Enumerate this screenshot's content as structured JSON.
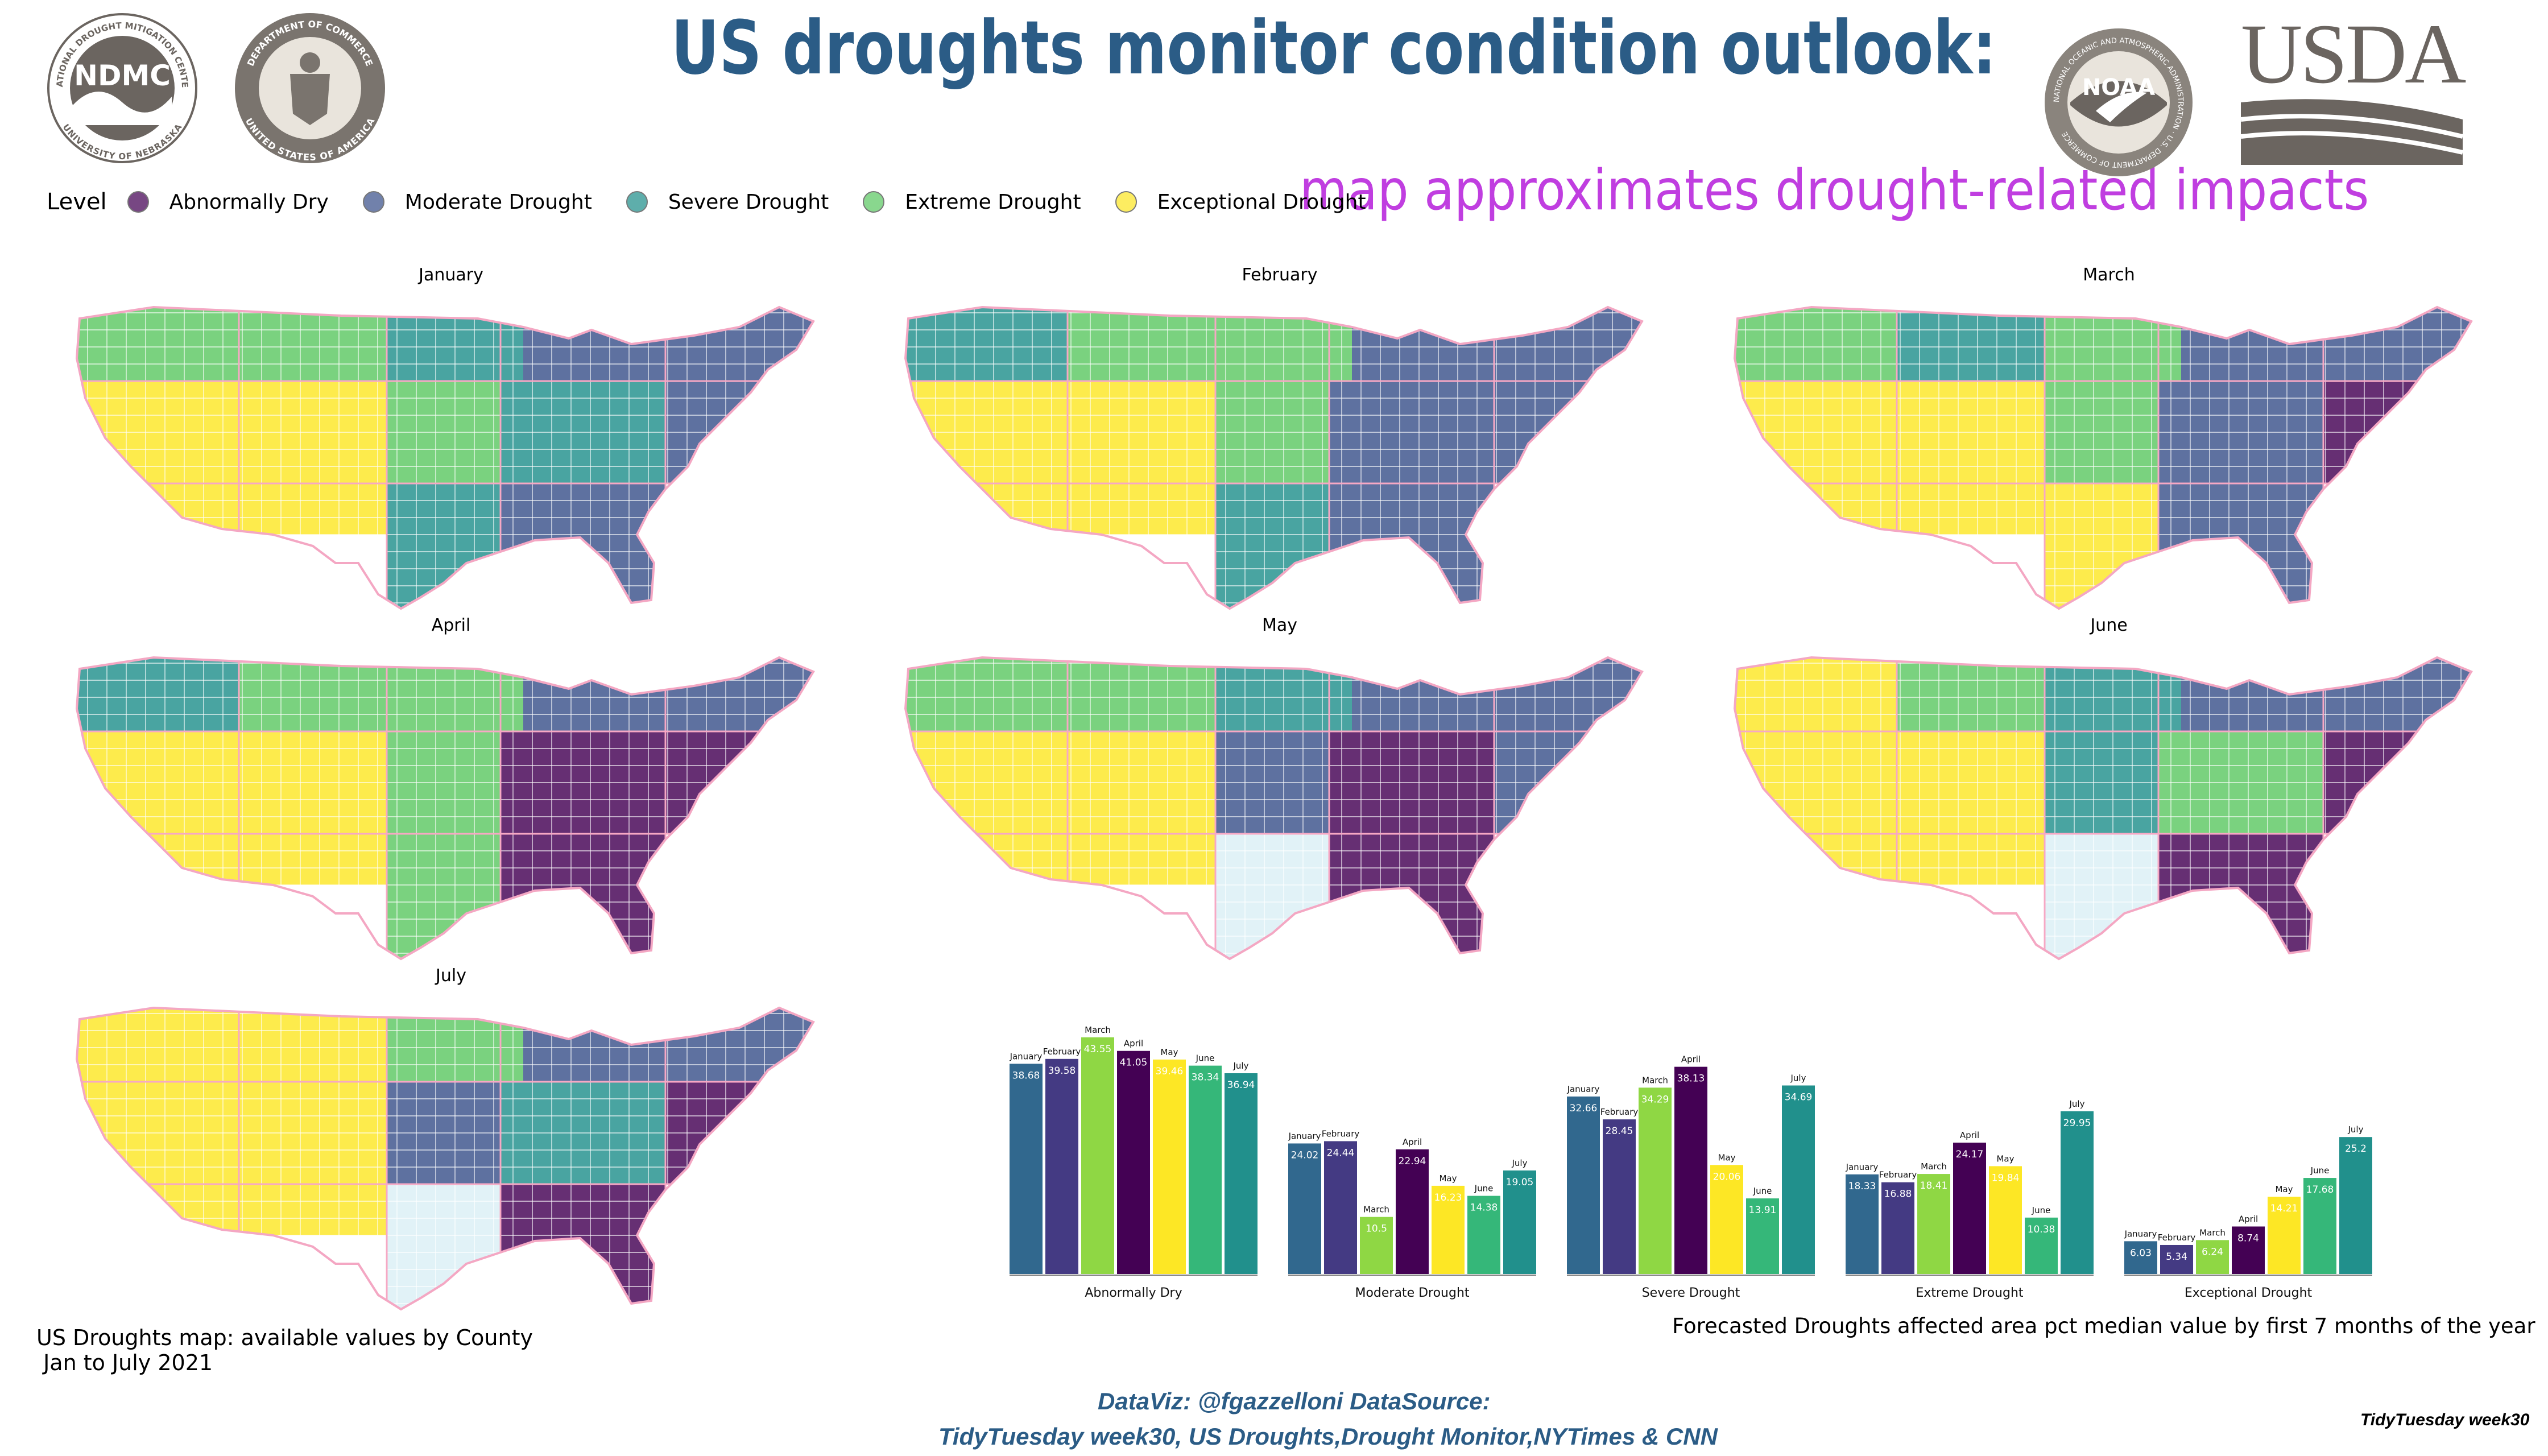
{
  "header": {
    "title": "US droughts monitor condition outlook:",
    "subtitle": "map approximates drought-related impacts"
  },
  "logos": {
    "ndmc": "NDMC",
    "ndmc_ring_top": "NATIONAL DROUGHT MITIGATION CENTER",
    "ndmc_ring_bottom": "UNIVERSITY OF NEBRASKA",
    "commerce_ring_top": "DEPARTMENT OF COMMERCE",
    "commerce_ring_bottom": "UNITED STATES OF AMERICA",
    "noaa": "NOAA",
    "noaa_ring": "NATIONAL OCEANIC AND ATMOSPHERIC ADMINISTRATION · U.S. DEPARTMENT OF COMMERCE",
    "usda": "USDA"
  },
  "legend": {
    "title": "Level",
    "items": [
      {
        "label": "Abnormally Dry",
        "color": "#440154"
      },
      {
        "label": "Moderate Drought",
        "color": "#3b528b"
      },
      {
        "label": "Severe Drought",
        "color": "#21908c"
      },
      {
        "label": "Extreme Drought",
        "color": "#5dc863"
      },
      {
        "label": "Exceptional Drought",
        "color": "#fde725"
      }
    ]
  },
  "maps": {
    "months": [
      "January",
      "February",
      "March",
      "April",
      "May",
      "June",
      "July"
    ],
    "caption": "US Droughts map: available values by County\n Jan to July 2021"
  },
  "chart_data": {
    "type": "bar",
    "title": "Forecasted Droughts affected area pct median value by first 7 months of the year",
    "categories": [
      "Abnormally Dry",
      "Moderate Drought",
      "Severe Drought",
      "Extreme Drought",
      "Exceptional Drought"
    ],
    "series_order": [
      "January",
      "February",
      "March",
      "April",
      "May",
      "June",
      "July"
    ],
    "bar_colors": {
      "January": "#31688e",
      "February": "#443a83",
      "March": "#8fd744",
      "April": "#440154",
      "May": "#fde725",
      "June": "#35b779",
      "July": "#21908c"
    },
    "values": {
      "Abnormally Dry": {
        "January": 38.68,
        "February": 39.58,
        "March": 43.55,
        "April": 41.05,
        "May": 39.46,
        "June": 38.34,
        "July": 36.94
      },
      "Moderate Drought": {
        "January": 24.02,
        "February": 24.44,
        "March": 10.5,
        "April": 22.94,
        "May": 16.23,
        "June": 14.38,
        "July": 19.05
      },
      "Severe Drought": {
        "January": 32.66,
        "February": 28.45,
        "March": 34.29,
        "April": 38.13,
        "May": 20.06,
        "June": 13.91,
        "July": 34.69
      },
      "Extreme Drought": {
        "January": 18.33,
        "February": 16.88,
        "March": 18.41,
        "April": 24.17,
        "May": 19.84,
        "June": 10.38,
        "July": 29.95
      },
      "Exceptional Drought": {
        "January": 6.03,
        "February": 5.34,
        "March": 6.24,
        "April": 8.74,
        "May": 14.21,
        "June": 17.68,
        "July": 25.2
      }
    },
    "ylim": [
      0,
      45
    ],
    "xlabel": "",
    "ylabel": ""
  },
  "credits": {
    "line1": "DataViz: @fgazzelloni DataSource:",
    "line2": "TidyTuesday week30, US Droughts,Drought Monitor,NYTimes & CNN",
    "tag": "TidyTuesday week30"
  }
}
